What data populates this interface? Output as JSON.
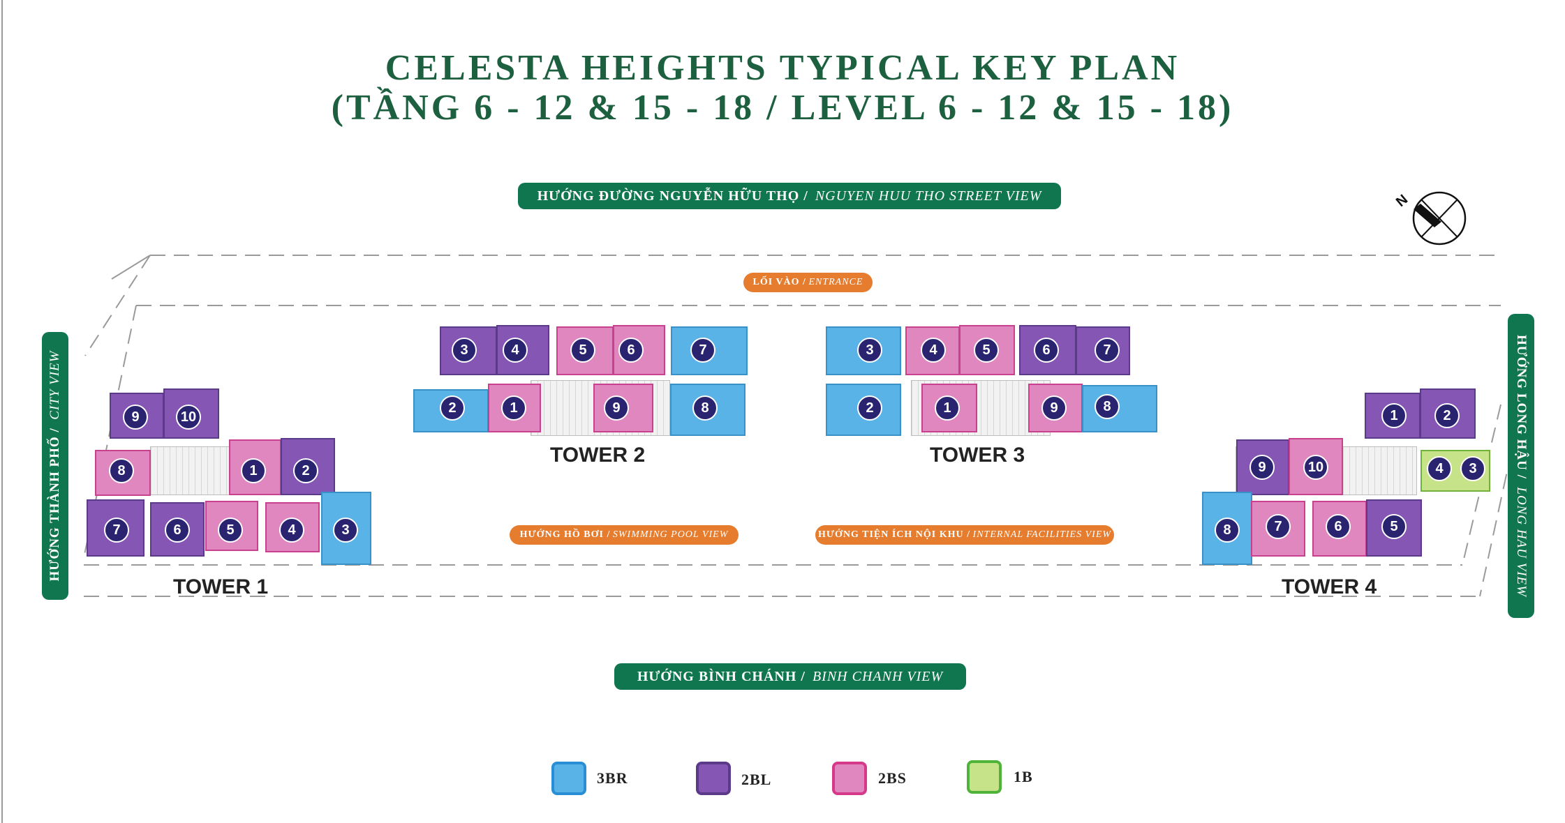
{
  "title": {
    "line1": "CELESTA HEIGHTS TYPICAL KEY PLAN",
    "line2": "(TẦNG 6 - 12 & 15 - 18 / LEVEL 6 - 12 & 15 - 18)"
  },
  "views": {
    "top": {
      "vi": "HƯỚNG ĐƯỜNG NGUYỄN HỮU THỌ /",
      "en": "NGUYEN HUU THO STREET VIEW"
    },
    "bottom": {
      "vi": "HƯỚNG BÌNH CHÁNH /",
      "en": "BINH CHANH VIEW"
    },
    "left": {
      "vi": "HƯỚNG THÀNH PHỐ /",
      "en": "CITY VIEW"
    },
    "right": {
      "vi": "HƯỚNG LONG HẬU /",
      "en": "LONG HAU VIEW"
    },
    "entrance": {
      "vi": "LỐI VÀO /",
      "en": "ENTRANCE"
    },
    "pool": {
      "vi": "HƯỚNG HỒ BƠI /",
      "en": "SWIMMING POOL VIEW"
    },
    "facilities": {
      "vi": "HƯỚNG TIỆN ÍCH NỘI KHU /",
      "en": "INTERNAL FACILITIES VIEW"
    }
  },
  "compass": {
    "label": "N"
  },
  "towers": [
    {
      "name": "TOWER 1",
      "units": [
        {
          "no": "9",
          "type": "2BL"
        },
        {
          "no": "10",
          "type": "2BL"
        },
        {
          "no": "8",
          "type": "2BS"
        },
        {
          "no": "1",
          "type": "2BS"
        },
        {
          "no": "2",
          "type": "2BL"
        },
        {
          "no": "7",
          "type": "2BL"
        },
        {
          "no": "6",
          "type": "2BL"
        },
        {
          "no": "5",
          "type": "2BS"
        },
        {
          "no": "4",
          "type": "2BS"
        },
        {
          "no": "3",
          "type": "3BR"
        }
      ]
    },
    {
      "name": "TOWER 2",
      "units": [
        {
          "no": "3",
          "type": "2BL"
        },
        {
          "no": "4",
          "type": "2BL"
        },
        {
          "no": "5",
          "type": "2BS"
        },
        {
          "no": "6",
          "type": "2BS"
        },
        {
          "no": "7",
          "type": "3BR"
        },
        {
          "no": "2",
          "type": "3BR"
        },
        {
          "no": "1",
          "type": "2BS"
        },
        {
          "no": "9",
          "type": "2BS"
        },
        {
          "no": "8",
          "type": "3BR"
        }
      ]
    },
    {
      "name": "TOWER 3",
      "units": [
        {
          "no": "3",
          "type": "3BR"
        },
        {
          "no": "4",
          "type": "2BS"
        },
        {
          "no": "5",
          "type": "2BS"
        },
        {
          "no": "6",
          "type": "2BL"
        },
        {
          "no": "7",
          "type": "2BL"
        },
        {
          "no": "2",
          "type": "3BR"
        },
        {
          "no": "1",
          "type": "2BS"
        },
        {
          "no": "9",
          "type": "2BS"
        },
        {
          "no": "8",
          "type": "3BR"
        }
      ]
    },
    {
      "name": "TOWER 4",
      "units": [
        {
          "no": "1",
          "type": "2BL"
        },
        {
          "no": "2",
          "type": "2BL"
        },
        {
          "no": "9",
          "type": "2BL"
        },
        {
          "no": "10",
          "type": "2BS"
        },
        {
          "no": "4",
          "type": "1B"
        },
        {
          "no": "3",
          "type": "1B"
        },
        {
          "no": "8",
          "type": "3BR"
        },
        {
          "no": "7",
          "type": "2BS"
        },
        {
          "no": "6",
          "type": "2BS"
        },
        {
          "no": "5",
          "type": "2BL"
        }
      ]
    }
  ],
  "legend": [
    {
      "type": "3BR",
      "label": "3BR",
      "fill": "#5ab3e6",
      "stroke": "#2a8ed6"
    },
    {
      "type": "2BL",
      "label": "2BL",
      "fill": "#8556b3",
      "stroke": "#5c3a8a"
    },
    {
      "type": "2BS",
      "label": "2BS",
      "fill": "#e187c0",
      "stroke": "#d6388a"
    },
    {
      "type": "1B",
      "label": "1B",
      "fill": "#c6e38a",
      "stroke": "#4fb33a"
    }
  ],
  "colors": {
    "brand_green": "#0f7650",
    "title_green": "#1d6040",
    "accent_orange": "#e57c2e",
    "badge_navy": "#2a2370"
  }
}
